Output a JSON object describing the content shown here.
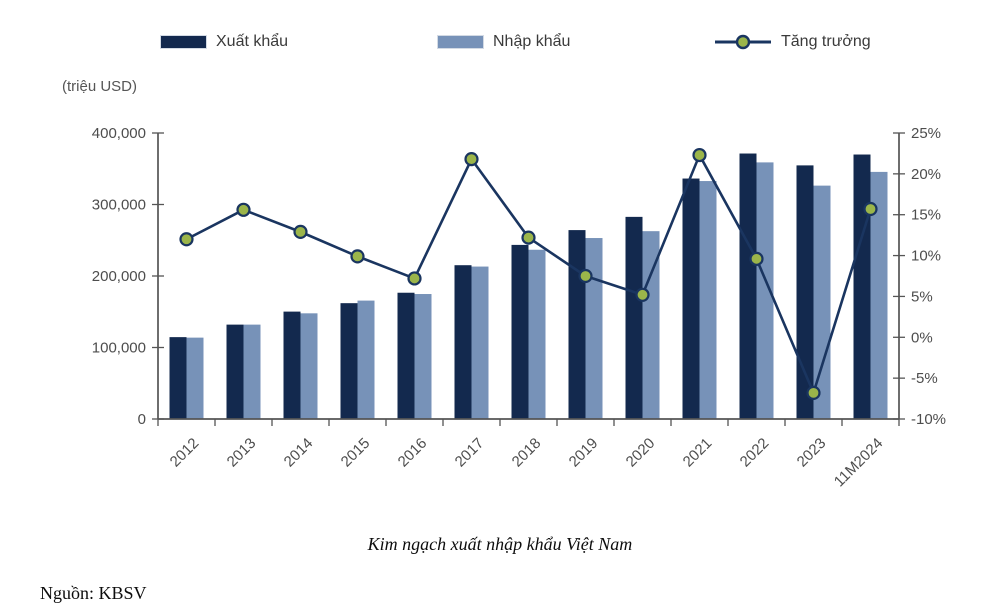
{
  "legend": {
    "items": [
      {
        "label": "Xuất khẩu",
        "type": "bar",
        "color": "#13294E"
      },
      {
        "label": "Nhập khẩu",
        "type": "bar",
        "color": "#7792B8"
      },
      {
        "label": "Tăng trưởng",
        "type": "line",
        "line_color": "#1A3560",
        "marker_fill": "#9BB54A"
      }
    ]
  },
  "caption": "Kim ngạch xuất nhập khẩu Việt Nam",
  "source": "Nguồn: KBSV",
  "colors": {
    "export_bar": "#13294E",
    "import_bar": "#7792B8",
    "growth_line": "#1A3560",
    "growth_marker_fill": "#9BB54A",
    "axis": "#555555",
    "tick_text": "#4d4d4d"
  },
  "chart_data": {
    "type": "bar",
    "subtype": "grouped-bar-with-line",
    "title": "Kim ngạch xuất nhập khẩu Việt Nam",
    "categories": [
      "2012",
      "2013",
      "2014",
      "2015",
      "2016",
      "2017",
      "2018",
      "2019",
      "2020",
      "2021",
      "2022",
      "2023",
      "11M2024"
    ],
    "series": [
      {
        "name": "Xuất khẩu",
        "type": "bar",
        "axis": "left",
        "color": "#13294E",
        "values": [
          114500,
          132000,
          150200,
          162000,
          176600,
          215100,
          243500,
          264200,
          282700,
          336300,
          371300,
          354700,
          369900
        ]
      },
      {
        "name": "Nhập khẩu",
        "type": "bar",
        "axis": "left",
        "color": "#7792B8",
        "values": [
          113800,
          132000,
          147800,
          165600,
          174800,
          213200,
          236700,
          253100,
          262700,
          332800,
          358900,
          326400,
          345600
        ]
      },
      {
        "name": "Tăng trưởng",
        "type": "line",
        "axis": "right",
        "color": "#1A3560",
        "marker_fill": "#9BB54A",
        "values": [
          12.0,
          15.6,
          12.9,
          9.9,
          7.2,
          21.8,
          12.2,
          7.5,
          5.2,
          22.3,
          9.6,
          -6.8,
          15.7
        ]
      }
    ],
    "left_axis": {
      "label": "(triệu USD)",
      "min": 0,
      "max": 400000,
      "ticks": [
        {
          "value": 0,
          "label": "0"
        },
        {
          "value": 100000,
          "label": "100,000"
        },
        {
          "value": 200000,
          "label": "200,000"
        },
        {
          "value": 300000,
          "label": "300,000"
        },
        {
          "value": 400000,
          "label": "400,000"
        }
      ]
    },
    "right_axis": {
      "min": -10,
      "max": 25,
      "ticks": [
        {
          "value": -10,
          "label": "-10%"
        },
        {
          "value": -5,
          "label": "-5%"
        },
        {
          "value": 0,
          "label": "0%"
        },
        {
          "value": 5,
          "label": "5%"
        },
        {
          "value": 10,
          "label": "10%"
        },
        {
          "value": 15,
          "label": "15%"
        },
        {
          "value": 20,
          "label": "20%"
        },
        {
          "value": 25,
          "label": "25%"
        }
      ]
    },
    "grid": false,
    "legend_position": "top"
  }
}
